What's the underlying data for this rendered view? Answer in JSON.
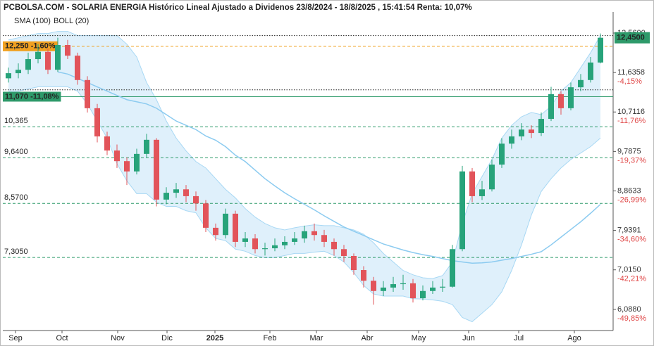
{
  "chart_data": {
    "type": "candlestick",
    "title": "PCBOLSA.COM - SOLARIA ENERGIA Histórico Lineal Ajustado a Dividenos 23/8/2024 - 18/8/2025 , 15:41:54 Renta: 10,07%",
    "up_color": "#27a37a",
    "down_color": "#e2545a",
    "open": [
      11.5,
      11.62,
      11.7,
      11.95,
      12.12,
      11.7,
      12.28,
      12.03,
      11.46,
      10.8,
      10.14,
      9.81,
      9.56,
      9.32,
      9.73,
      10.06,
      8.66,
      8.82,
      8.9,
      8.74,
      8.57,
      8.0,
      7.83,
      8.33,
      7.67,
      7.75,
      7.5,
      7.52,
      7.59,
      7.67,
      7.75,
      7.92,
      7.83,
      7.67,
      7.5,
      7.34,
      7.01,
      6.76,
      6.52,
      6.6,
      6.68,
      6.7,
      6.35,
      6.52,
      6.6,
      6.62,
      7.5,
      9.32,
      8.74,
      8.9,
      9.48,
      9.97,
      10.14,
      10.3,
      10.22,
      10.55,
      11.13,
      10.8,
      11.29,
      11.46,
      11.87
    ],
    "high": [
      11.75,
      11.85,
      12.1,
      12.3,
      12.2,
      12.45,
      12.4,
      12.1,
      11.55,
      10.9,
      10.25,
      9.95,
      9.65,
      9.85,
      10.2,
      10.1,
      8.95,
      9.05,
      9.0,
      8.85,
      8.65,
      8.1,
      8.45,
      8.4,
      7.9,
      7.85,
      7.65,
      7.75,
      7.8,
      7.9,
      8.05,
      8.1,
      7.95,
      7.75,
      7.6,
      7.4,
      7.1,
      6.85,
      6.75,
      6.85,
      6.9,
      6.8,
      6.65,
      6.75,
      6.8,
      7.6,
      9.45,
      9.4,
      9.1,
      9.6,
      10.1,
      10.3,
      10.45,
      10.4,
      10.7,
      11.3,
      11.2,
      11.4,
      11.6,
      12.0,
      12.55
    ],
    "low": [
      11.4,
      11.5,
      11.6,
      11.85,
      11.6,
      11.65,
      11.95,
      11.35,
      10.7,
      10.0,
      9.7,
      9.4,
      9.0,
      9.25,
      9.65,
      8.5,
      8.55,
      8.7,
      8.6,
      8.4,
      7.9,
      7.7,
      7.75,
      7.55,
      7.55,
      7.4,
      7.35,
      7.45,
      7.5,
      7.6,
      7.65,
      7.7,
      7.55,
      7.35,
      7.2,
      6.9,
      6.6,
      6.2,
      6.4,
      6.5,
      6.55,
      6.25,
      6.3,
      6.45,
      6.5,
      6.6,
      7.45,
      8.6,
      8.65,
      8.85,
      9.4,
      9.85,
      10.05,
      10.1,
      10.15,
      10.5,
      10.65,
      10.75,
      11.2,
      11.4,
      11.85
    ],
    "close": [
      11.62,
      11.7,
      11.95,
      12.12,
      11.7,
      12.28,
      12.03,
      11.46,
      10.8,
      10.14,
      9.81,
      9.56,
      9.32,
      9.73,
      10.06,
      8.66,
      8.82,
      8.9,
      8.74,
      8.57,
      8.0,
      7.83,
      8.33,
      7.67,
      7.75,
      7.5,
      7.52,
      7.59,
      7.67,
      7.75,
      7.92,
      7.83,
      7.67,
      7.5,
      7.34,
      7.01,
      6.76,
      6.52,
      6.6,
      6.68,
      6.7,
      6.35,
      6.52,
      6.6,
      6.62,
      7.5,
      9.32,
      8.74,
      8.9,
      9.48,
      9.97,
      10.14,
      10.3,
      10.22,
      10.55,
      11.13,
      10.8,
      11.29,
      11.46,
      11.87,
      12.45
    ],
    "series": [
      {
        "name": "SMA (100)",
        "color": "#8ccbf0",
        "values": [
          null,
          null,
          null,
          null,
          null,
          11.65,
          11.6,
          11.5,
          11.4,
          11.3,
          11.2,
          11.1,
          11.0,
          10.95,
          10.9,
          10.8,
          10.65,
          10.5,
          10.4,
          10.3,
          10.15,
          10.05,
          9.9,
          9.7,
          9.55,
          9.35,
          9.15,
          8.98,
          8.82,
          8.68,
          8.55,
          8.42,
          8.28,
          8.15,
          8.02,
          7.92,
          7.82,
          7.72,
          7.62,
          7.55,
          7.48,
          7.42,
          7.37,
          7.33,
          7.28,
          7.23,
          7.2,
          7.17,
          7.18,
          7.2,
          7.24,
          7.28,
          7.33,
          7.38,
          7.44,
          7.6,
          7.78,
          7.96,
          8.14,
          8.34,
          8.55
        ]
      }
    ],
    "bollinger": {
      "name": "BOLL (20)",
      "color": "#c4c4c4",
      "upper": [
        12.4,
        12.45,
        12.5,
        12.55,
        12.55,
        12.6,
        12.6,
        12.5,
        12.5,
        12.5,
        12.5,
        12.5,
        12.3,
        12.0,
        11.4,
        11.0,
        10.5,
        10.1,
        9.8,
        9.55,
        9.4,
        9.15,
        8.9,
        8.7,
        8.45,
        8.25,
        8.1,
        8.0,
        7.95,
        8.0,
        8.04,
        8.07,
        8.05,
        8.05,
        8.0,
        7.95,
        7.85,
        7.65,
        7.4,
        7.2,
        7.0,
        6.9,
        6.83,
        6.81,
        6.88,
        7.2,
        8.1,
        8.8,
        9.2,
        9.6,
        10.1,
        10.4,
        10.6,
        10.7,
        10.65,
        10.85,
        11.2,
        11.4,
        11.75,
        12.1,
        12.5
      ],
      "lower": [
        11.2,
        11.2,
        11.25,
        11.3,
        11.3,
        11.3,
        11.3,
        11.2,
        10.9,
        10.5,
        10.1,
        9.5,
        9.1,
        8.8,
        8.8,
        8.6,
        8.5,
        8.5,
        8.4,
        8.35,
        8.0,
        7.75,
        7.7,
        7.5,
        7.45,
        7.35,
        7.3,
        7.3,
        7.35,
        7.4,
        7.4,
        7.43,
        7.45,
        7.35,
        7.2,
        6.95,
        6.65,
        6.45,
        6.4,
        6.4,
        6.4,
        6.34,
        6.33,
        6.31,
        6.28,
        6.2,
        5.9,
        5.8,
        6.0,
        6.2,
        6.5,
        7.0,
        7.6,
        8.3,
        8.85,
        9.15,
        9.4,
        9.6,
        9.75,
        9.9,
        10.1
      ]
    },
    "ylim": [
      5.594,
      13.054
    ],
    "yticks": [
      {
        "value": 12.56,
        "label": "12,5600"
      },
      {
        "value": 11.6358,
        "label": "11,6358"
      },
      {
        "value": 10.7116,
        "label": "10,7116"
      },
      {
        "value": 9.7875,
        "label": "9,7875"
      },
      {
        "value": 8.8633,
        "label": "8,8633"
      },
      {
        "value": 7.9391,
        "label": "7,9391"
      },
      {
        "value": 7.015,
        "label": "7,0150"
      },
      {
        "value": 6.088,
        "label": "6,0880"
      }
    ],
    "ytick_changes": [
      null,
      "-4,15%",
      "-11,76%",
      "-19,37%",
      "-26,99%",
      "-34,60%",
      "-42,21%",
      "-49,85%"
    ],
    "levels": [
      {
        "value": 12.25,
        "label": "12,250  -1,60%",
        "color": "#f0a020",
        "boxed": true
      },
      {
        "value": 11.07,
        "label": "11,070  -11,08%",
        "color": "#2e9a6a",
        "boxed": true
      },
      {
        "value": 10.365,
        "label": "10,365",
        "color": "#2e9a6a",
        "boxed": false
      },
      {
        "value": 9.64,
        "label": "9,6400",
        "color": "#2e9a6a",
        "boxed": false
      },
      {
        "value": 8.57,
        "label": "8,5700",
        "color": "#2e9a6a",
        "boxed": false
      },
      {
        "value": 7.305,
        "label": "7,3050",
        "color": "#2e9a6a",
        "boxed": false
      }
    ],
    "dotted_lines": [
      12.5,
      11.23
    ],
    "last_price": {
      "value": 12.45,
      "label": "12,4500",
      "color": "#2e9a6a"
    },
    "x_labels": [
      "Sep",
      "Oct",
      "Nov",
      "Dic",
      "2025",
      "Feb",
      "Mar",
      "Abr",
      "May",
      "Jun",
      "Jul",
      "Ago"
    ]
  }
}
